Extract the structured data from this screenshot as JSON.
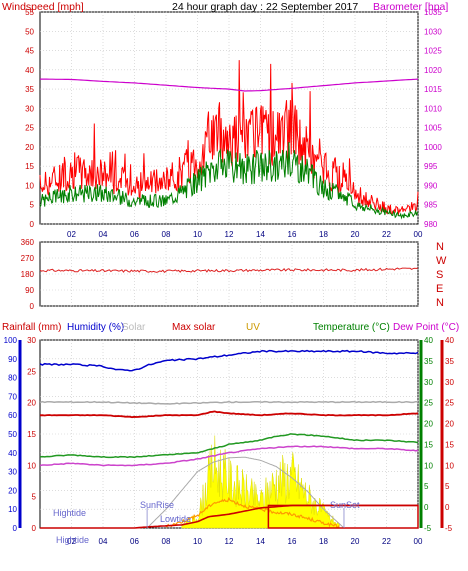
{
  "header": {
    "windspeed_label": "Windspeed [mph]",
    "title": "24 hour graph day : 22 September 2017",
    "barometer_label": "Barometer [hpa]"
  },
  "legend": {
    "rainfall": "Rainfall (mm)",
    "humidity": "Humidity (%)",
    "solar": "Solar",
    "max_solar": "Max solar",
    "uv": "UV",
    "temperature": "Temperature (°C)",
    "dew_point": "Dew Point (°C)"
  },
  "annotations": {
    "hightide_1": "Hightide",
    "hightide_2": "Hightide",
    "sunrise": "SunRise",
    "lowtide": "Lowtide",
    "sunset": "SunSet"
  },
  "colors": {
    "wind_gust": "#ff0000",
    "wind_avg": "#008000",
    "wind_dir": "#dd2222",
    "barometer": "#cc00cc",
    "humidity": "#0000cc",
    "solar": "#ffff00",
    "max_solar": "#aaaaaa",
    "uv": "#ff9900",
    "temperature": "#229922",
    "dew_point": "#cc44cc",
    "rain": "#cc0000"
  },
  "chart_data": [
    {
      "type": "line",
      "title": "24 hour graph day : 22 September 2017",
      "x_ticks": [
        "02",
        "04",
        "06",
        "08",
        "10",
        "12",
        "14",
        "16",
        "18",
        "20",
        "22",
        "00"
      ],
      "y_left": {
        "label": "Windspeed [mph]",
        "range": [
          0,
          55
        ],
        "ticks": [
          0,
          5,
          10,
          15,
          20,
          25,
          30,
          35,
          40,
          45,
          50,
          55
        ]
      },
      "y_right": {
        "label": "Barometer [hpa]",
        "range": [
          980,
          1035
        ],
        "ticks": [
          980,
          985,
          990,
          995,
          1000,
          1005,
          1010,
          1015,
          1020,
          1025,
          1030,
          1035
        ]
      },
      "grid": true,
      "series": [
        {
          "name": "Windspeed [mph]",
          "hours": [
            0,
            2,
            4,
            6,
            8,
            10,
            11,
            12,
            13,
            14,
            15,
            16,
            17,
            18,
            19,
            20,
            21,
            22,
            23,
            24
          ],
          "values": [
            10,
            14,
            13,
            10,
            11,
            17,
            24,
            23,
            22,
            23,
            23,
            25,
            19,
            14,
            12,
            8,
            6,
            4,
            3,
            5
          ]
        },
        {
          "name": "",
          "hours": [
            0,
            2,
            4,
            6,
            8,
            10,
            11,
            12,
            13,
            14,
            15,
            16,
            17,
            18,
            19,
            20,
            21,
            22,
            23,
            24
          ],
          "values": [
            6,
            8,
            8,
            6,
            6,
            11,
            15,
            15,
            14,
            15,
            15,
            17,
            13,
            9,
            8,
            5,
            4,
            3,
            2,
            3
          ]
        },
        {
          "name": "Barometer [hpa]",
          "hours": [
            0,
            2,
            4,
            6,
            8,
            10,
            12,
            13,
            14,
            16,
            18,
            20,
            22,
            24
          ],
          "values": [
            1017.6,
            1017.5,
            1017.0,
            1016.6,
            1016.0,
            1015.4,
            1015.0,
            1014.5,
            1014.6,
            1015.2,
            1015.9,
            1016.6,
            1017.1,
            1017.6
          ]
        }
      ]
    },
    {
      "type": "line",
      "y_left": {
        "range": [
          0,
          360
        ],
        "ticks": [
          0,
          90,
          180,
          270,
          360
        ]
      },
      "y_right_labels": [
        "N",
        "W",
        "S",
        "E",
        "N"
      ],
      "grid": true,
      "series": [
        {
          "name": "",
          "hours": [
            0,
            4,
            8,
            12,
            16,
            20,
            23,
            24
          ],
          "values": [
            200,
            198,
            196,
            200,
            203,
            202,
            210,
            208
          ]
        }
      ]
    },
    {
      "type": "line",
      "x_ticks": [
        "02",
        "04",
        "06",
        "08",
        "10",
        "12",
        "14",
        "16",
        "18",
        "20",
        "22",
        "00"
      ],
      "axes": {
        "humidity": {
          "label": "Humidity (%)",
          "range": [
            0,
            100
          ],
          "ticks": [
            0,
            10,
            20,
            30,
            40,
            50,
            60,
            70,
            80,
            90,
            100
          ]
        },
        "rainfall": {
          "label": "Rainfall (mm)",
          "range": [
            0,
            30
          ],
          "ticks": [
            0,
            5,
            10,
            15,
            20,
            25,
            30
          ]
        },
        "temperature": {
          "label": "Temperature (°C)",
          "range": [
            -5,
            40
          ],
          "ticks": [
            -5,
            0,
            5,
            10,
            15,
            20,
            25,
            30,
            35,
            40
          ]
        },
        "dew_point": {
          "label": "Dew Point (°C)",
          "range": [
            -5,
            40
          ],
          "ticks": [
            -5,
            0,
            5,
            10,
            15,
            20,
            25,
            30,
            35,
            40
          ]
        }
      },
      "grid": true,
      "series": [
        {
          "name": "Humidity (%)",
          "axis": "humidity",
          "hours": [
            0,
            2,
            4,
            5,
            6,
            7,
            8,
            10,
            12,
            14,
            16,
            18,
            20,
            22,
            24
          ],
          "values": [
            87,
            87,
            86,
            84,
            84,
            87,
            89,
            90,
            92,
            94,
            94,
            94,
            94,
            93,
            93
          ]
        },
        {
          "name": "",
          "axis": "humidity",
          "hours": [
            0,
            4,
            8,
            12,
            16,
            20,
            24
          ],
          "values": [
            67,
            67,
            66,
            67,
            67,
            67,
            67
          ]
        },
        {
          "name": "",
          "axis": "humidity",
          "hours": [
            0,
            2,
            4,
            6,
            8,
            10,
            11,
            12,
            14,
            16,
            18,
            20,
            22,
            24
          ],
          "values": [
            60,
            60,
            60,
            59,
            60,
            60,
            62,
            61,
            60,
            61,
            60,
            60,
            60,
            61
          ]
        },
        {
          "name": "Temperature (°C)",
          "axis": "temperature",
          "hours": [
            0,
            2,
            4,
            6,
            8,
            10,
            11,
            12,
            14,
            15,
            16,
            18,
            20,
            22,
            24
          ],
          "values": [
            12,
            12.5,
            12,
            12,
            12.5,
            13,
            14,
            15,
            16,
            17,
            17.5,
            17,
            16,
            16,
            15.5
          ]
        },
        {
          "name": "Dew Point (°C)",
          "axis": "dew_point",
          "hours": [
            0,
            2,
            4,
            6,
            8,
            10,
            12,
            14,
            16,
            18,
            20,
            22,
            24
          ],
          "values": [
            10,
            10.5,
            10,
            10,
            10.5,
            11.5,
            13,
            14,
            14.5,
            14.5,
            14,
            14,
            13.5
          ]
        },
        {
          "name": "Rainfall (mm)",
          "axis": "rainfall",
          "hours": [
            0,
            6,
            7,
            9,
            10,
            10.7,
            12,
            14,
            16,
            20,
            24
          ],
          "values": [
            0,
            0,
            0.2,
            0.5,
            1.0,
            1.8,
            2.2,
            3.2,
            3.6,
            3.6,
            3.6
          ]
        },
        {
          "name": "Max solar",
          "axis": "rainfall",
          "hours": [
            6.8,
            8,
            9,
            10,
            11,
            12,
            13,
            14,
            15,
            16,
            17,
            18,
            19.3
          ],
          "values": [
            0,
            3,
            6,
            9,
            10.5,
            11.2,
            11.3,
            10.8,
            9.8,
            8,
            5.8,
            3,
            0
          ]
        },
        {
          "name": "UV",
          "axis": "rainfall",
          "hours": [
            8,
            9,
            10,
            11,
            12,
            13,
            14,
            15,
            16,
            17,
            18,
            19
          ],
          "values": [
            0.2,
            1,
            2,
            4,
            4.5,
            3.5,
            3,
            2.5,
            2.2,
            1.5,
            0.8,
            0.2
          ]
        },
        {
          "name": "Solar",
          "axis": "rainfall",
          "hours": [
            9,
            10,
            11,
            12,
            13,
            14,
            15,
            16,
            17,
            18,
            19
          ],
          "values": [
            0.5,
            2,
            12,
            9,
            7,
            5,
            9,
            10,
            6,
            3,
            0.5
          ]
        }
      ],
      "annotations": {
        "hightide_hours": [
          0
        ],
        "sunrise_hour": 6.8,
        "lowtide_hour": 7,
        "sunset_hour": 19.3
      }
    }
  ]
}
